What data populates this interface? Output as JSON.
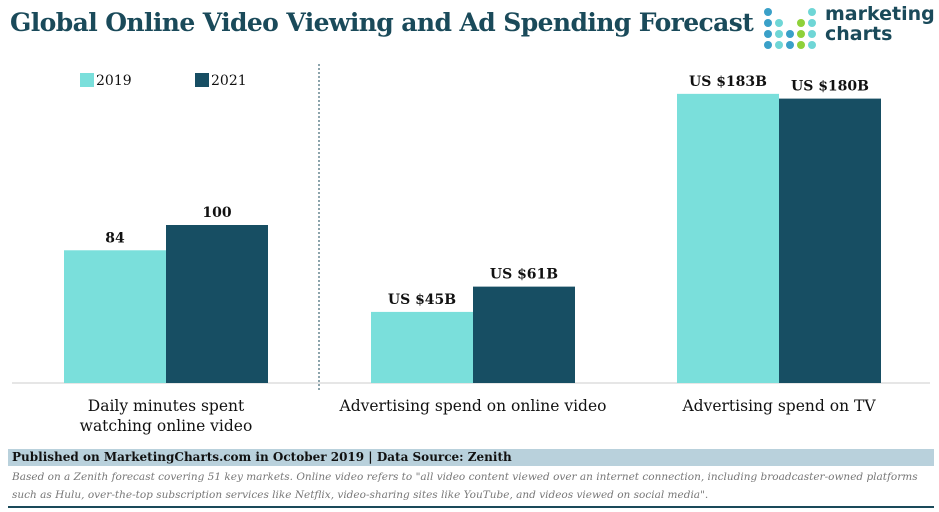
{
  "title": "Global Online Video Viewing and Ad Spending Forecast",
  "logo": {
    "text_line1": "marketing",
    "text_line2": "charts"
  },
  "chart_data": {
    "type": "bar",
    "categories": [
      "Daily minutes spent watching online video",
      "Advertising spend on online video",
      "Advertising spend on TV"
    ],
    "category_lines": [
      [
        "Daily minutes spent",
        "watching online video"
      ],
      [
        "Advertising spend on online video"
      ],
      [
        "Advertising spend on TV"
      ]
    ],
    "series": [
      {
        "name": "2019",
        "values": [
          84,
          45,
          183
        ],
        "labels": [
          "84",
          "US $45B",
          "US $183B"
        ],
        "color": "#7ADFDB"
      },
      {
        "name": "2021",
        "values": [
          100,
          61,
          180
        ],
        "labels": [
          "100",
          "US $61B",
          "US $180B"
        ],
        "color": "#174E63"
      }
    ],
    "ylim": [
      0,
      200
    ],
    "grid": false,
    "legend": "top-left"
  },
  "footer": {
    "published": "Published on MarketingCharts.com in October 2019 | Data Source: Zenith",
    "note": "Based on a Zenith forecast covering 51 key markets. Online video refers to \"all video content viewed over an internet connection, including broadcaster-owned platforms such as Hulu, over-the-top subscription services like Netflix, video-sharing sites like YouTube, and videos viewed on social media\"."
  }
}
